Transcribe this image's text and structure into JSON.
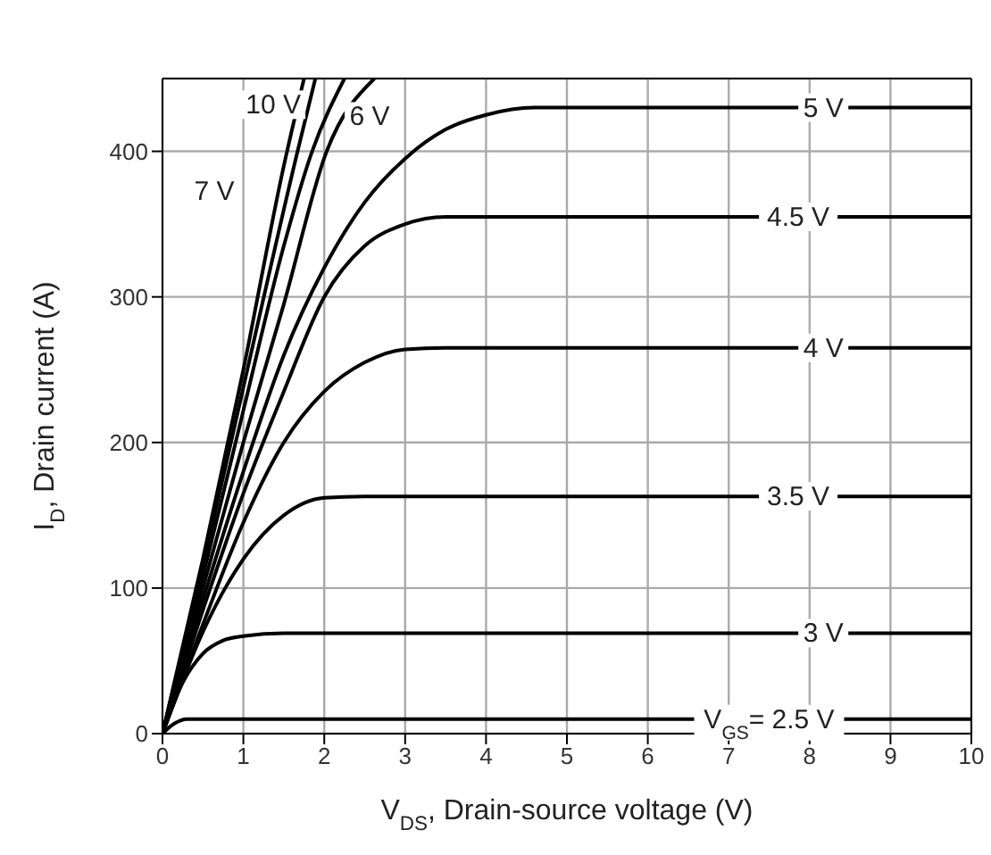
{
  "chart_data": {
    "type": "line",
    "xlabel": "V$_{DS}$, Drain-source voltage (V)",
    "ylabel": "I$_{D}$, Drain current (A)",
    "xlim": [
      0,
      10
    ],
    "xticks": [
      0,
      1,
      2,
      3,
      4,
      5,
      6,
      7,
      8,
      9,
      10
    ],
    "ylim": [
      0,
      450
    ],
    "yticks": [
      0,
      100,
      200,
      300,
      400
    ],
    "grid": true,
    "marker": "none",
    "line_style": "solid",
    "series": [
      {
        "color": "#000000",
        "x": [
          0,
          0.5,
          1,
          1.5,
          1.75
        ],
        "values": [
          0,
          120,
          250,
          390,
          450
        ]
      },
      {
        "color": "#000000",
        "x": [
          0,
          0.5,
          1,
          1.67,
          1.89
        ],
        "values": [
          0,
          115,
          238,
          400,
          450
        ]
      },
      {
        "color": "#000000",
        "x": [
          0,
          0.5,
          1,
          1.5,
          1.85,
          2.25
        ],
        "values": [
          0,
          108,
          222,
          335,
          400,
          450
        ]
      },
      {
        "color": "#000000",
        "x": [
          0,
          0.5,
          1,
          1.5,
          2.03,
          2.62
        ],
        "values": [
          0,
          100,
          200,
          295,
          400,
          450
        ]
      },
      {
        "color": "#000000",
        "x": [
          0,
          0.5,
          1,
          1.5,
          2,
          2.5,
          3,
          3.5,
          4,
          4.6,
          10
        ],
        "values": [
          0,
          92,
          180,
          260,
          320,
          365,
          395,
          415,
          425,
          430,
          430
        ]
      },
      {
        "color": "#000000",
        "x": [
          0,
          0.5,
          1,
          1.5,
          2,
          2.5,
          3,
          3.5,
          10
        ],
        "values": [
          0,
          85,
          165,
          235,
          300,
          335,
          350,
          355,
          355
        ]
      },
      {
        "color": "#000000",
        "x": [
          0,
          0.5,
          1,
          1.5,
          2,
          2.5,
          3,
          3.5,
          10
        ],
        "values": [
          0,
          75,
          145,
          200,
          235,
          255,
          264,
          265,
          265
        ]
      },
      {
        "color": "#000000",
        "x": [
          0,
          0.5,
          1,
          1.5,
          2,
          2.5,
          10
        ],
        "values": [
          0,
          70,
          120,
          150,
          162,
          163,
          163
        ]
      },
      {
        "color": "#000000",
        "x": [
          0,
          0.25,
          0.5,
          0.75,
          1,
          1.5,
          10
        ],
        "values": [
          0,
          35,
          55,
          64,
          67,
          69,
          69
        ]
      },
      {
        "color": "#000000",
        "x": [
          0,
          0.15,
          0.3,
          10
        ],
        "values": [
          0,
          7,
          10,
          10
        ]
      }
    ],
    "annotations": [
      {
        "text": "10 V",
        "x": 1.37,
        "y": 432
      },
      {
        "text": "6 V",
        "x": 2.56,
        "y": 424
      },
      {
        "text": "7 V",
        "x": 0.64,
        "y": 373
      },
      {
        "text": "5 V",
        "x": 8.17,
        "y": 430
      },
      {
        "text": "4.5 V",
        "x": 7.86,
        "y": 355
      },
      {
        "text": "4 V",
        "x": 8.17,
        "y": 265
      },
      {
        "text": "3.5 V",
        "x": 7.86,
        "y": 163
      },
      {
        "text": "3 V",
        "x": 8.17,
        "y": 69
      },
      {
        "text": "V$_{GS}$= 2.5 V",
        "x": 7.5,
        "y": 10
      }
    ]
  }
}
